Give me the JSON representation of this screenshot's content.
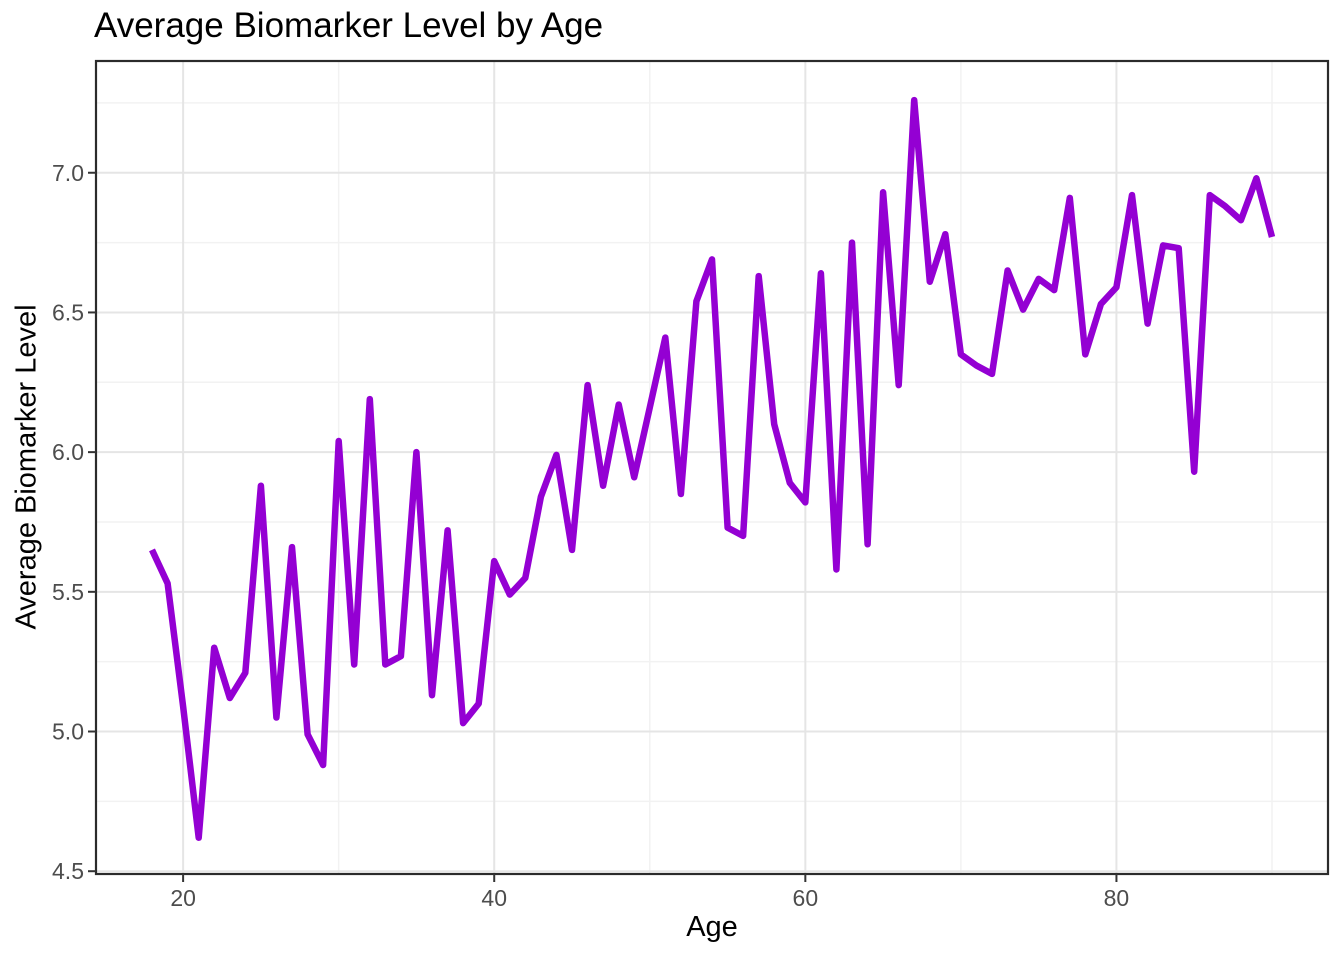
{
  "chart_data": {
    "type": "line",
    "title": "Average Biomarker Level by Age",
    "xlabel": "Age",
    "ylabel": "Average Biomarker Level",
    "series_name": "average-biomarker-level",
    "x": [
      18,
      19,
      20,
      21,
      22,
      23,
      24,
      25,
      26,
      27,
      28,
      29,
      30,
      31,
      32,
      33,
      34,
      35,
      36,
      37,
      38,
      39,
      40,
      41,
      42,
      43,
      44,
      45,
      46,
      47,
      48,
      49,
      50,
      51,
      52,
      53,
      54,
      55,
      56,
      57,
      58,
      59,
      60,
      61,
      62,
      63,
      64,
      65,
      66,
      67,
      68,
      69,
      70,
      71,
      72,
      73,
      74,
      75,
      76,
      77,
      78,
      79,
      80,
      81,
      82,
      83,
      84,
      85,
      86,
      87,
      88,
      89,
      90
    ],
    "y": [
      5.65,
      5.53,
      5.09,
      4.62,
      5.3,
      5.12,
      5.21,
      5.88,
      5.05,
      5.66,
      4.99,
      4.88,
      6.04,
      5.24,
      6.19,
      5.24,
      5.27,
      6.0,
      5.13,
      5.72,
      5.03,
      5.1,
      5.61,
      5.49,
      5.55,
      5.84,
      5.99,
      5.65,
      6.24,
      5.88,
      6.17,
      5.91,
      6.16,
      6.41,
      5.85,
      6.54,
      6.69,
      5.73,
      5.7,
      6.63,
      6.1,
      5.89,
      5.82,
      6.64,
      5.58,
      6.75,
      5.67,
      6.93,
      6.24,
      7.26,
      6.61,
      6.78,
      6.35,
      6.31,
      6.28,
      6.65,
      6.51,
      6.62,
      6.58,
      6.91,
      6.35,
      6.53,
      6.59,
      6.92,
      6.46,
      6.74,
      6.73,
      5.93,
      6.92,
      6.88,
      6.83,
      6.98,
      6.77
    ],
    "x_ticks": [
      20,
      40,
      60,
      80
    ],
    "x_tick_labels": [
      "20",
      "40",
      "60",
      "80"
    ],
    "x_minor_gridlines": [
      30,
      50,
      70,
      90
    ],
    "y_ticks": [
      4.5,
      5.0,
      5.5,
      6.0,
      6.5,
      7.0
    ],
    "y_tick_labels": [
      "4.5",
      "5.0",
      "5.5",
      "6.0",
      "6.5",
      "7.0"
    ],
    "y_minor_gridlines": [
      4.75,
      5.25,
      5.75,
      6.25,
      6.75,
      7.25
    ],
    "xlim": [
      14.4,
      93.6
    ],
    "ylim": [
      4.49,
      7.4
    ],
    "grid": true,
    "legend_position": "none",
    "line_color": "#9400D3",
    "colors": {
      "background": "#ffffff",
      "panel_background": "#ffffff",
      "panel_border": "#2b2b2b",
      "grid_major": "#e5e5e5",
      "grid_minor": "#f2f2f2",
      "tick": "#333333",
      "tick_label": "#4d4d4d",
      "title_text": "#000000"
    }
  }
}
